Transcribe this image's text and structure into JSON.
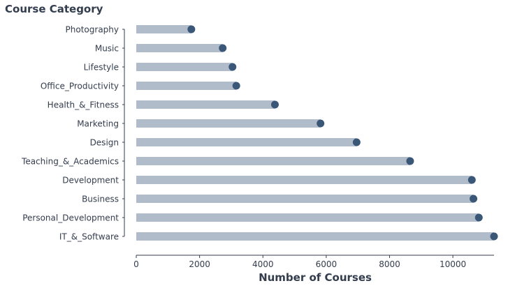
{
  "chart_data": {
    "type": "bar",
    "title": "Course Category",
    "xlabel": "Number of Courses",
    "ylabel": "",
    "orientation": "horizontal",
    "style": "lollipop",
    "categories": [
      "Photography",
      "Music",
      "Lifestyle",
      "Office_Productivity",
      "Health_&_Fitness",
      "Marketing",
      "Design",
      "Teaching_&_Academics",
      "Development",
      "Business",
      "Personal_Development",
      "IT_&_Software"
    ],
    "values": [
      1740,
      2730,
      3040,
      3160,
      4380,
      5820,
      6960,
      8650,
      10600,
      10650,
      10820,
      11300
    ],
    "xlim": [
      0,
      11300
    ],
    "xticks": [
      0,
      2000,
      4000,
      6000,
      8000,
      10000
    ],
    "grid": false,
    "bar_color": "#b1bccb",
    "dot_color": "#3a5778",
    "text_color": "#333d4d"
  }
}
